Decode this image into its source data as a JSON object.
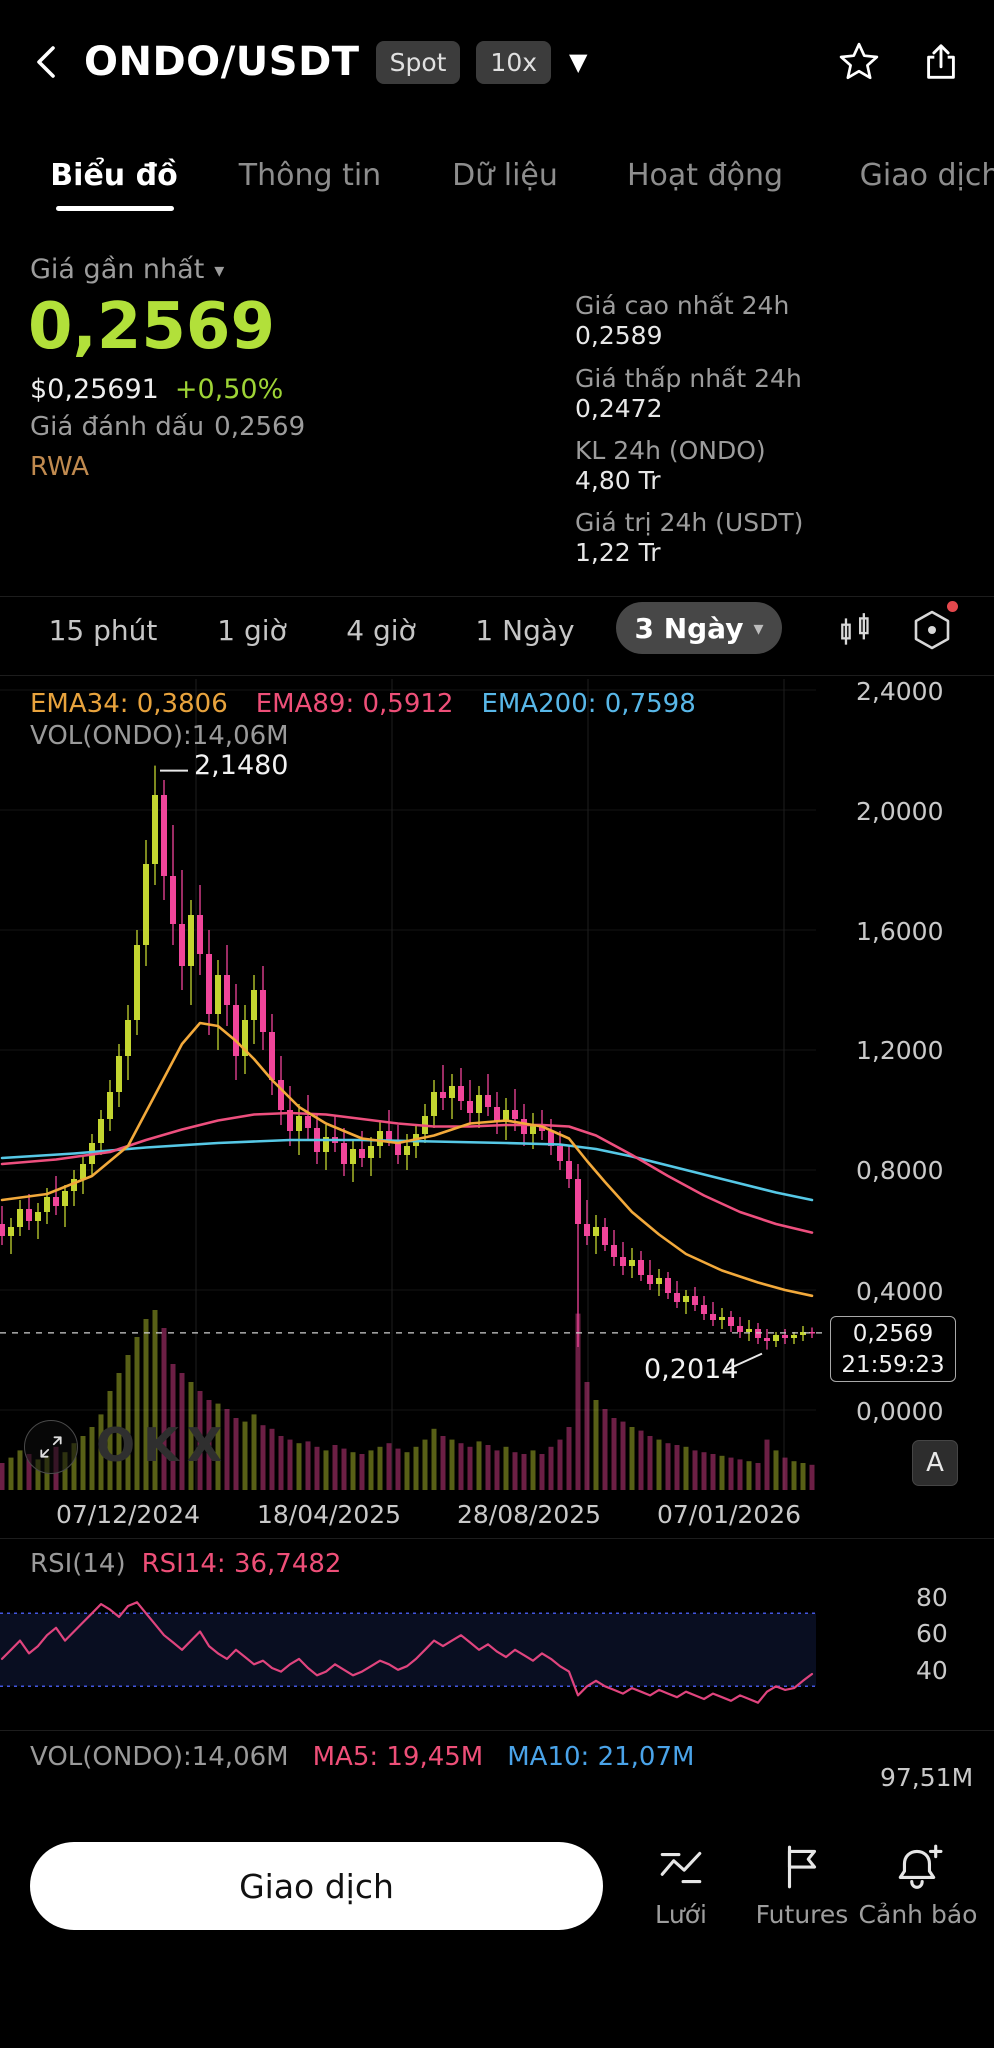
{
  "header": {
    "symbol": "ONDO/USDT",
    "spot_badge": "Spot",
    "leverage_badge": "10x"
  },
  "tabs": [
    {
      "label": "Biểu đồ",
      "active": true
    },
    {
      "label": "Thông tin",
      "active": false
    },
    {
      "label": "Dữ liệu",
      "active": false
    },
    {
      "label": "Hoạt động",
      "active": false
    },
    {
      "label": "Giao dịch",
      "active": false
    }
  ],
  "price": {
    "label": "Giá gần nhất",
    "last": "0,2569",
    "usd": "$0,25691",
    "change": "+0,50%",
    "mark_label": "Giá đánh dấu",
    "mark_value": "0,2569",
    "tag": "RWA"
  },
  "stats": [
    {
      "label": "Giá cao nhất 24h",
      "value": "0,2589"
    },
    {
      "label": "Giá thấp nhất 24h",
      "value": "0,2472"
    },
    {
      "label": "KL 24h (ONDO)",
      "value": "4,80 Tr"
    },
    {
      "label": "Giá trị 24h (USDT)",
      "value": "1,22 Tr"
    }
  ],
  "timeframes": [
    {
      "label": "15 phút",
      "selected": false
    },
    {
      "label": "1 giờ",
      "selected": false
    },
    {
      "label": "4 giờ",
      "selected": false
    },
    {
      "label": "1 Ngày",
      "selected": false
    },
    {
      "label": "3 Ngày",
      "selected": true
    }
  ],
  "chart": {
    "legend": {
      "ema34": "EMA34: 0,3806",
      "ema89": "EMA89: 0,5912",
      "ema200": "EMA200: 0,7598",
      "vol": "VOL(ONDO):14,06M"
    },
    "y_axis": [
      "2,4000",
      "2,0000",
      "1,6000",
      "1,2000",
      "0,8000",
      "0,4000",
      "0,0000"
    ],
    "x_axis": [
      "07/12/2024",
      "18/04/2025",
      "28/08/2025",
      "07/01/2026"
    ],
    "annotations": {
      "high": "2,1480",
      "low": "0,2014"
    },
    "badge": {
      "price": "0,2569",
      "time": "21:59:23"
    },
    "a_label": "A",
    "watermark": "OKX"
  },
  "rsi": {
    "title": "RSI(14)",
    "value": "RSI14: 36,7482",
    "labels": [
      "80",
      "60",
      "40"
    ]
  },
  "volume_panel": {
    "header": "VOL(ONDO):14,06M",
    "ma5": "MA5: 19,45M",
    "ma10": "MA10: 21,07M",
    "scale": "97,51M"
  },
  "bottom_bar": {
    "trade": "Giao dịch",
    "items": [
      {
        "label": "Lưới"
      },
      {
        "label": "Futures"
      },
      {
        "label": "Cảnh báo"
      }
    ]
  },
  "chart_data": {
    "type": "candlestick",
    "interval": "3 ngày",
    "price_range": [
      0,
      2.4
    ],
    "y_ticks": [
      2.4,
      2.0,
      1.6,
      1.2,
      0.8,
      0.4,
      0.0
    ],
    "x_tick_labels": [
      "07/12/2024",
      "18/04/2025",
      "28/08/2025",
      "07/01/2026"
    ],
    "last_price": 0.2569,
    "high_annotation": 2.148,
    "low_annotation": 0.2014,
    "candles": [
      [
        0.62,
        0.68,
        0.55,
        0.58
      ],
      [
        0.58,
        0.64,
        0.52,
        0.61
      ],
      [
        0.61,
        0.7,
        0.58,
        0.67
      ],
      [
        0.67,
        0.72,
        0.6,
        0.63
      ],
      [
        0.63,
        0.69,
        0.57,
        0.66
      ],
      [
        0.66,
        0.74,
        0.62,
        0.71
      ],
      [
        0.71,
        0.78,
        0.65,
        0.68
      ],
      [
        0.68,
        0.75,
        0.61,
        0.73
      ],
      [
        0.73,
        0.8,
        0.68,
        0.77
      ],
      [
        0.77,
        0.85,
        0.72,
        0.82
      ],
      [
        0.82,
        0.92,
        0.78,
        0.89
      ],
      [
        0.89,
        1.0,
        0.85,
        0.97
      ],
      [
        0.97,
        1.1,
        0.93,
        1.06
      ],
      [
        1.06,
        1.22,
        1.01,
        1.18
      ],
      [
        1.18,
        1.35,
        1.1,
        1.3
      ],
      [
        1.3,
        1.6,
        1.25,
        1.55
      ],
      [
        1.55,
        1.9,
        1.48,
        1.82
      ],
      [
        1.82,
        2.148,
        1.75,
        2.05
      ],
      [
        2.05,
        2.1,
        1.7,
        1.78
      ],
      [
        1.78,
        1.95,
        1.55,
        1.62
      ],
      [
        1.62,
        1.8,
        1.4,
        1.48
      ],
      [
        1.48,
        1.7,
        1.35,
        1.65
      ],
      [
        1.65,
        1.75,
        1.45,
        1.52
      ],
      [
        1.52,
        1.6,
        1.25,
        1.32
      ],
      [
        1.32,
        1.5,
        1.2,
        1.45
      ],
      [
        1.45,
        1.55,
        1.28,
        1.35
      ],
      [
        1.35,
        1.42,
        1.1,
        1.18
      ],
      [
        1.18,
        1.35,
        1.12,
        1.3
      ],
      [
        1.3,
        1.45,
        1.22,
        1.4
      ],
      [
        1.4,
        1.48,
        1.2,
        1.26
      ],
      [
        1.26,
        1.32,
        1.05,
        1.1
      ],
      [
        1.1,
        1.18,
        0.95,
        1.0
      ],
      [
        1.0,
        1.08,
        0.88,
        0.93
      ],
      [
        0.93,
        1.02,
        0.85,
        0.98
      ],
      [
        0.98,
        1.05,
        0.9,
        0.94
      ],
      [
        0.94,
        0.99,
        0.82,
        0.86
      ],
      [
        0.86,
        0.95,
        0.8,
        0.91
      ],
      [
        0.91,
        0.98,
        0.86,
        0.89
      ],
      [
        0.89,
        0.94,
        0.78,
        0.82
      ],
      [
        0.82,
        0.9,
        0.76,
        0.87
      ],
      [
        0.87,
        0.93,
        0.81,
        0.84
      ],
      [
        0.84,
        0.91,
        0.78,
        0.88
      ],
      [
        0.88,
        0.96,
        0.84,
        0.93
      ],
      [
        0.93,
        1.0,
        0.88,
        0.9
      ],
      [
        0.9,
        0.95,
        0.82,
        0.85
      ],
      [
        0.85,
        0.92,
        0.8,
        0.88
      ],
      [
        0.88,
        0.95,
        0.84,
        0.92
      ],
      [
        0.92,
        1.02,
        0.89,
        0.98
      ],
      [
        0.98,
        1.1,
        0.94,
        1.06
      ],
      [
        1.06,
        1.15,
        1.0,
        1.04
      ],
      [
        1.04,
        1.12,
        0.97,
        1.08
      ],
      [
        1.08,
        1.14,
        1.0,
        1.03
      ],
      [
        1.03,
        1.1,
        0.95,
        0.99
      ],
      [
        0.99,
        1.08,
        0.94,
        1.05
      ],
      [
        1.05,
        1.12,
        0.98,
        1.01
      ],
      [
        1.01,
        1.06,
        0.92,
        0.96
      ],
      [
        0.96,
        1.04,
        0.9,
        1.0
      ],
      [
        1.0,
        1.07,
        0.93,
        0.97
      ],
      [
        0.97,
        1.02,
        0.88,
        0.92
      ],
      [
        0.92,
        0.99,
        0.87,
        0.95
      ],
      [
        0.95,
        1.0,
        0.9,
        0.93
      ],
      [
        0.93,
        0.97,
        0.85,
        0.88
      ],
      [
        0.88,
        0.93,
        0.8,
        0.83
      ],
      [
        0.83,
        0.88,
        0.74,
        0.77
      ],
      [
        0.77,
        0.82,
        0.21,
        0.62
      ],
      [
        0.62,
        0.7,
        0.55,
        0.58
      ],
      [
        0.58,
        0.65,
        0.52,
        0.61
      ],
      [
        0.61,
        0.64,
        0.53,
        0.55
      ],
      [
        0.55,
        0.6,
        0.48,
        0.51
      ],
      [
        0.51,
        0.56,
        0.45,
        0.48
      ],
      [
        0.48,
        0.54,
        0.44,
        0.5
      ],
      [
        0.5,
        0.53,
        0.43,
        0.45
      ],
      [
        0.45,
        0.5,
        0.4,
        0.42
      ],
      [
        0.42,
        0.47,
        0.38,
        0.44
      ],
      [
        0.44,
        0.46,
        0.37,
        0.39
      ],
      [
        0.39,
        0.43,
        0.34,
        0.36
      ],
      [
        0.36,
        0.4,
        0.32,
        0.38
      ],
      [
        0.38,
        0.41,
        0.33,
        0.35
      ],
      [
        0.35,
        0.38,
        0.3,
        0.32
      ],
      [
        0.32,
        0.36,
        0.28,
        0.3
      ],
      [
        0.3,
        0.34,
        0.27,
        0.31
      ],
      [
        0.31,
        0.33,
        0.26,
        0.28
      ],
      [
        0.28,
        0.31,
        0.24,
        0.26
      ],
      [
        0.26,
        0.3,
        0.23,
        0.27
      ],
      [
        0.27,
        0.29,
        0.22,
        0.24
      ],
      [
        0.24,
        0.27,
        0.2014,
        0.23
      ],
      [
        0.23,
        0.26,
        0.21,
        0.25
      ],
      [
        0.25,
        0.27,
        0.22,
        0.24
      ],
      [
        0.24,
        0.26,
        0.22,
        0.25
      ],
      [
        0.25,
        0.28,
        0.23,
        0.26
      ],
      [
        0.26,
        0.275,
        0.24,
        0.2569
      ]
    ],
    "volumes": [
      15,
      18,
      22,
      20,
      17,
      19,
      24,
      21,
      26,
      30,
      35,
      42,
      55,
      65,
      75,
      85,
      95,
      100,
      90,
      70,
      65,
      60,
      55,
      50,
      48,
      45,
      40,
      38,
      42,
      36,
      34,
      30,
      28,
      26,
      27,
      24,
      22,
      25,
      23,
      21,
      20,
      22,
      24,
      26,
      23,
      21,
      24,
      28,
      34,
      30,
      28,
      26,
      24,
      27,
      25,
      22,
      24,
      21,
      20,
      22,
      20,
      24,
      28,
      35,
      98,
      60,
      50,
      45,
      40,
      38,
      35,
      33,
      30,
      28,
      26,
      25,
      24,
      22,
      21,
      20,
      19,
      18,
      17,
      16,
      15,
      28,
      22,
      18,
      16,
      15,
      14
    ],
    "ema34_points": [
      [
        0,
        0.7
      ],
      [
        5,
        0.72
      ],
      [
        10,
        0.78
      ],
      [
        14,
        0.88
      ],
      [
        17,
        1.05
      ],
      [
        20,
        1.22
      ],
      [
        22,
        1.29
      ],
      [
        24,
        1.28
      ],
      [
        26,
        1.23
      ],
      [
        28,
        1.17
      ],
      [
        30,
        1.1
      ],
      [
        33,
        1.01
      ],
      [
        36,
        0.955
      ],
      [
        40,
        0.905
      ],
      [
        44,
        0.89
      ],
      [
        48,
        0.915
      ],
      [
        52,
        0.955
      ],
      [
        56,
        0.965
      ],
      [
        60,
        0.945
      ],
      [
        63,
        0.905
      ],
      [
        65,
        0.83
      ],
      [
        67,
        0.76
      ],
      [
        70,
        0.66
      ],
      [
        73,
        0.585
      ],
      [
        76,
        0.52
      ],
      [
        80,
        0.465
      ],
      [
        84,
        0.425
      ],
      [
        87,
        0.4
      ],
      [
        90,
        0.3806
      ]
    ],
    "ema89_points": [
      [
        0,
        0.82
      ],
      [
        6,
        0.835
      ],
      [
        12,
        0.86
      ],
      [
        16,
        0.9
      ],
      [
        20,
        0.935
      ],
      [
        24,
        0.965
      ],
      [
        28,
        0.985
      ],
      [
        32,
        0.99
      ],
      [
        36,
        0.985
      ],
      [
        40,
        0.97
      ],
      [
        44,
        0.955
      ],
      [
        48,
        0.945
      ],
      [
        52,
        0.945
      ],
      [
        56,
        0.95
      ],
      [
        60,
        0.95
      ],
      [
        63,
        0.945
      ],
      [
        66,
        0.915
      ],
      [
        70,
        0.85
      ],
      [
        74,
        0.78
      ],
      [
        78,
        0.715
      ],
      [
        82,
        0.66
      ],
      [
        86,
        0.62
      ],
      [
        90,
        0.5912
      ]
    ],
    "ema200_points": [
      [
        0,
        0.84
      ],
      [
        8,
        0.855
      ],
      [
        16,
        0.875
      ],
      [
        24,
        0.89
      ],
      [
        32,
        0.9
      ],
      [
        40,
        0.9
      ],
      [
        48,
        0.895
      ],
      [
        56,
        0.89
      ],
      [
        62,
        0.885
      ],
      [
        66,
        0.87
      ],
      [
        70,
        0.845
      ],
      [
        74,
        0.815
      ],
      [
        78,
        0.785
      ],
      [
        82,
        0.755
      ],
      [
        86,
        0.725
      ],
      [
        90,
        0.7
      ]
    ],
    "rsi": {
      "period": 14,
      "band": [
        30,
        70
      ],
      "y_labels": [
        80,
        60,
        40
      ],
      "last_value": 36.7482,
      "values": [
        45,
        50,
        55,
        48,
        52,
        58,
        62,
        55,
        60,
        65,
        70,
        75,
        72,
        68,
        74,
        76,
        70,
        64,
        58,
        54,
        50,
        55,
        60,
        52,
        48,
        45,
        50,
        46,
        42,
        44,
        40,
        38,
        42,
        45,
        40,
        36,
        38,
        42,
        39,
        36,
        38,
        41,
        44,
        42,
        39,
        41,
        45,
        50,
        55,
        52,
        55,
        58,
        54,
        50,
        53,
        49,
        46,
        50,
        47,
        44,
        48,
        45,
        41,
        38,
        25,
        30,
        33,
        30,
        28,
        26,
        29,
        27,
        25,
        28,
        26,
        24,
        27,
        25,
        23,
        26,
        24,
        22,
        25,
        23,
        21,
        27,
        30,
        28,
        29,
        33,
        36.7
      ]
    }
  }
}
